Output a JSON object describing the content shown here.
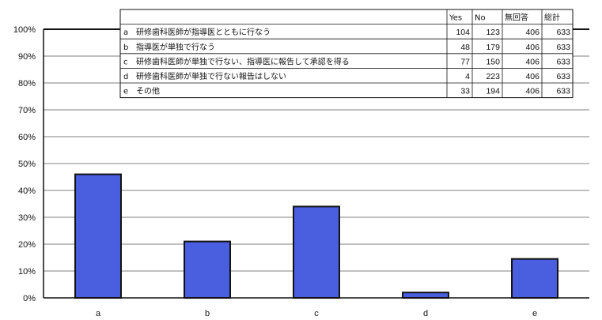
{
  "chart_data": {
    "type": "bar",
    "categories": [
      "a",
      "b",
      "c",
      "d",
      "e"
    ],
    "values": [
      0.46,
      0.21,
      0.34,
      0.02,
      0.145
    ],
    "value_unit": "fraction",
    "title": "",
    "xlabel": "",
    "ylabel": "",
    "ylim": [
      0,
      1
    ],
    "y_ticks": [
      "0%",
      "10%",
      "20%",
      "30%",
      "40%",
      "50%",
      "60%",
      "70%",
      "80%",
      "90%",
      "100%"
    ],
    "grid": true,
    "bar_color": "#4a5ee0",
    "legend": "none"
  },
  "data_table": {
    "position": "top-center",
    "columns": [
      "",
      "Yes",
      "No",
      "無回答",
      "総計"
    ],
    "rows": [
      {
        "key": "a",
        "label": "研修歯科医師が指導医とともに行なう",
        "yes": "104",
        "no": "123",
        "na": "406",
        "total": "633"
      },
      {
        "key": "b",
        "label": "指導医が単独で行なう",
        "yes": "48",
        "no": "179",
        "na": "406",
        "total": "633"
      },
      {
        "key": "c",
        "label": "研修歯科医師が単独で行ない、指導医に報告して承認を得る",
        "yes": "77",
        "no": "150",
        "na": "406",
        "total": "633"
      },
      {
        "key": "d",
        "label": "研修歯科医師が単独で行ない報告はしない",
        "yes": "4",
        "no": "223",
        "na": "406",
        "total": "633"
      },
      {
        "key": "e",
        "label": "その他",
        "yes": "33",
        "no": "194",
        "na": "406",
        "total": "633"
      }
    ]
  }
}
